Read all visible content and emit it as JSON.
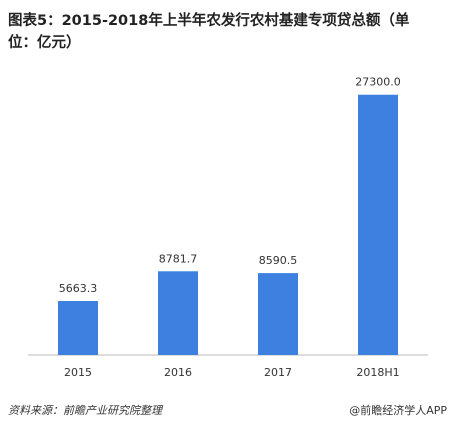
{
  "chart_data": {
    "type": "bar",
    "title": "图表5：2015-2018年上半年农发行农村基建专项贷总额（单位：亿元）",
    "categories": [
      "2015",
      "2016",
      "2017",
      "2018H1"
    ],
    "values": [
      5663.3,
      8781.7,
      8590.5,
      27300.0
    ],
    "value_labels": [
      "5663.3",
      "8781.7",
      "8590.5",
      "27300.0"
    ],
    "color": "#3d80e0",
    "ylim": [
      0,
      30000
    ],
    "source": "资料来源：前瞻产业研究院整理",
    "footer_right": "@前瞻经济学人APP"
  }
}
